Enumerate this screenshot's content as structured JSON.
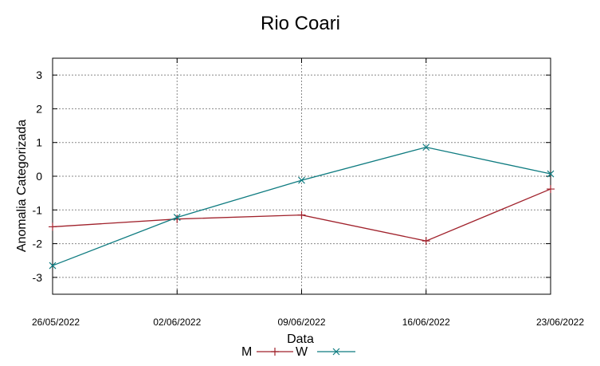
{
  "chart_data": {
    "type": "line",
    "title": "Rio Coari",
    "xlabel": "Data",
    "ylabel": "Anomalia Categorizada",
    "categories": [
      "26/05/2022",
      "02/06/2022",
      "09/06/2022",
      "16/06/2022",
      "23/06/2022"
    ],
    "ylim": [
      -3.5,
      3.5
    ],
    "yticks": [
      "3",
      "2",
      "1",
      "0",
      "-1",
      "-2",
      "-3"
    ],
    "grid": true,
    "legend_position": "bottom",
    "series": [
      {
        "name": "M",
        "color": "#a0212b",
        "marker": "plus",
        "values": [
          -1.5,
          -1.27,
          -1.15,
          -1.92,
          -0.38
        ]
      },
      {
        "name": "W",
        "color": "#0e7b80",
        "marker": "cross",
        "values": [
          -2.65,
          -1.22,
          -0.12,
          0.86,
          0.07
        ]
      }
    ]
  }
}
